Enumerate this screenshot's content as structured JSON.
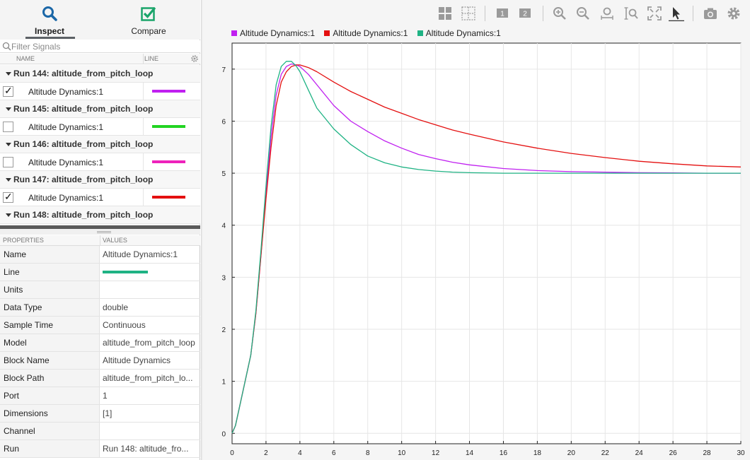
{
  "tabs": {
    "inspect": {
      "label": "Inspect",
      "icon": "magnifier-icon"
    },
    "compare": {
      "label": "Compare",
      "icon": "checkmark-box-icon"
    }
  },
  "filter": {
    "placeholder": "Filter Signals"
  },
  "signal_table": {
    "headers": {
      "name": "NAME",
      "line": "LINE"
    },
    "runs": [
      {
        "label": "Run 144: altitude_from_pitch_loop",
        "signal": "Altitude Dynamics:1",
        "checked": true,
        "color": "#c020f0"
      },
      {
        "label": "Run 145: altitude_from_pitch_loop",
        "signal": "Altitude Dynamics:1",
        "checked": false,
        "color": "#22d422"
      },
      {
        "label": "Run 146: altitude_from_pitch_loop",
        "signal": "Altitude Dynamics:1",
        "checked": false,
        "color": "#ee22bb"
      },
      {
        "label": "Run 147: altitude_from_pitch_loop",
        "signal": "Altitude Dynamics:1",
        "checked": true,
        "color": "#e41010"
      },
      {
        "label": "Run 148: altitude_from_pitch_loop"
      }
    ],
    "check_mark": "✓"
  },
  "properties": {
    "headers": {
      "key": "PROPERTIES",
      "value": "VALUES"
    },
    "line_color": "#1fb384",
    "rows": [
      {
        "key": "Name",
        "value": "Altitude Dynamics:1"
      },
      {
        "key": "Line",
        "value": ""
      },
      {
        "key": "Units",
        "value": ""
      },
      {
        "key": "Data Type",
        "value": "double"
      },
      {
        "key": "Sample Time",
        "value": "Continuous"
      },
      {
        "key": "Model",
        "value": "altitude_from_pitch_loop"
      },
      {
        "key": "Block Name",
        "value": "Altitude Dynamics"
      },
      {
        "key": "Block Path",
        "value": "altitude_from_pitch_lo..."
      },
      {
        "key": "Port",
        "value": "1"
      },
      {
        "key": "Dimensions",
        "value": "[1]"
      },
      {
        "key": "Channel",
        "value": ""
      },
      {
        "key": "Run",
        "value": "Run 148: altitude_fro..."
      }
    ]
  },
  "toolbar": {
    "icons": [
      "layout-grid-icon",
      "grid-icon",
      "subplot-1-icon",
      "subplot-2-icon",
      "zoom-in-icon",
      "zoom-out-icon",
      "zoom-x-icon",
      "zoom-y-icon",
      "fit-to-view-icon",
      "cursor-icon",
      "snapshot-camera-icon",
      "settings-gear-icon"
    ],
    "subplot_labels": [
      "1",
      "2"
    ]
  },
  "chart_data": {
    "type": "line",
    "title": "",
    "xlabel": "",
    "ylabel": "",
    "xlim": [
      0,
      30
    ],
    "ylim": [
      -0.2,
      7.5
    ],
    "xticks": [
      0,
      2,
      4,
      6,
      8,
      10,
      12,
      14,
      16,
      18,
      20,
      22,
      24,
      26,
      28,
      30
    ],
    "yticks": [
      0,
      1,
      2,
      3,
      4,
      5,
      6,
      7
    ],
    "grid": true,
    "legend_position": "top-left",
    "series": [
      {
        "name": "Altitude Dynamics:1",
        "color": "#c020f0",
        "x": [
          0,
          0.2,
          0.5,
          0.8,
          1.1,
          1.4,
          1.7,
          2.0,
          2.3,
          2.6,
          2.9,
          3.2,
          3.5,
          3.8,
          4.0,
          4.5,
          5,
          6,
          7,
          8,
          9,
          10,
          11,
          12,
          13,
          14,
          16,
          18,
          20,
          22,
          24,
          26,
          28,
          30
        ],
        "y": [
          0,
          0.15,
          0.6,
          1.05,
          1.5,
          2.3,
          3.4,
          4.6,
          5.7,
          6.5,
          6.9,
          7.05,
          7.1,
          7.08,
          7.05,
          6.9,
          6.7,
          6.3,
          6.0,
          5.8,
          5.62,
          5.48,
          5.36,
          5.28,
          5.21,
          5.16,
          5.09,
          5.05,
          5.03,
          5.02,
          5.01,
          5.005,
          5.0,
          5.0
        ]
      },
      {
        "name": "Altitude Dynamics:1",
        "color": "#e41010",
        "x": [
          0,
          0.2,
          0.5,
          0.8,
          1.1,
          1.4,
          1.7,
          2.0,
          2.3,
          2.6,
          2.9,
          3.2,
          3.5,
          3.8,
          4.0,
          4.5,
          5,
          6,
          7,
          8,
          9,
          10,
          11,
          12,
          13,
          14,
          16,
          18,
          20,
          22,
          24,
          26,
          28,
          30
        ],
        "y": [
          0,
          0.15,
          0.6,
          1.05,
          1.5,
          2.3,
          3.4,
          4.5,
          5.5,
          6.3,
          6.75,
          6.95,
          7.05,
          7.08,
          7.08,
          7.03,
          6.95,
          6.75,
          6.57,
          6.42,
          6.27,
          6.15,
          6.03,
          5.93,
          5.83,
          5.75,
          5.6,
          5.48,
          5.38,
          5.3,
          5.23,
          5.18,
          5.14,
          5.12
        ]
      },
      {
        "name": "Altitude Dynamics:1",
        "color": "#1fb384",
        "x": [
          0,
          0.2,
          0.5,
          0.8,
          1.1,
          1.4,
          1.7,
          2.0,
          2.3,
          2.6,
          2.9,
          3.2,
          3.5,
          3.8,
          4.0,
          4.5,
          5,
          6,
          7,
          8,
          9,
          10,
          11,
          12,
          13,
          14,
          16,
          18,
          20,
          22,
          24,
          26,
          28,
          30
        ],
        "y": [
          0,
          0.15,
          0.6,
          1.05,
          1.5,
          2.35,
          3.5,
          4.75,
          5.9,
          6.7,
          7.05,
          7.15,
          7.15,
          7.05,
          6.95,
          6.6,
          6.25,
          5.85,
          5.55,
          5.33,
          5.2,
          5.12,
          5.07,
          5.04,
          5.02,
          5.01,
          5.0,
          5.0,
          5.0,
          5.0,
          5.0,
          5.0,
          5.0,
          5.0
        ]
      }
    ]
  }
}
